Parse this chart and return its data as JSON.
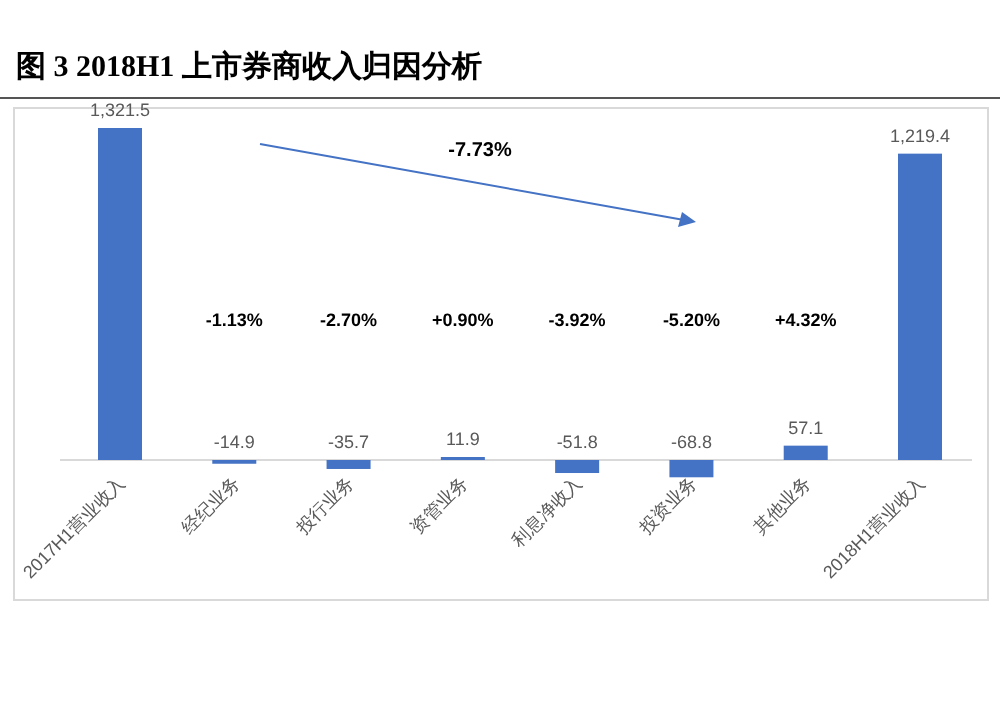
{
  "chart_data": {
    "type": "bar",
    "title": "图 3 2018H1 上市券商收入归因分析",
    "categories": [
      "2017H1营业收入",
      "经纪业务",
      "投行业务",
      "资管业务",
      "利息净收入",
      "投资业务",
      "其他业务",
      "2018H1营业收入"
    ],
    "values": [
      1321.5,
      -14.9,
      -35.7,
      11.9,
      -51.8,
      -68.8,
      57.1,
      1219.4
    ],
    "value_labels": [
      "1,321.5",
      "-14.9",
      "-35.7",
      "11.9",
      "-51.8",
      "-68.8",
      "57.1",
      "1,219.4"
    ],
    "color": "#4472c4",
    "annotations": [
      "-7.73%",
      "-1.13%",
      "-2.70%",
      "+0.90%",
      "-3.92%",
      "-5.20%",
      "+4.32%"
    ]
  }
}
